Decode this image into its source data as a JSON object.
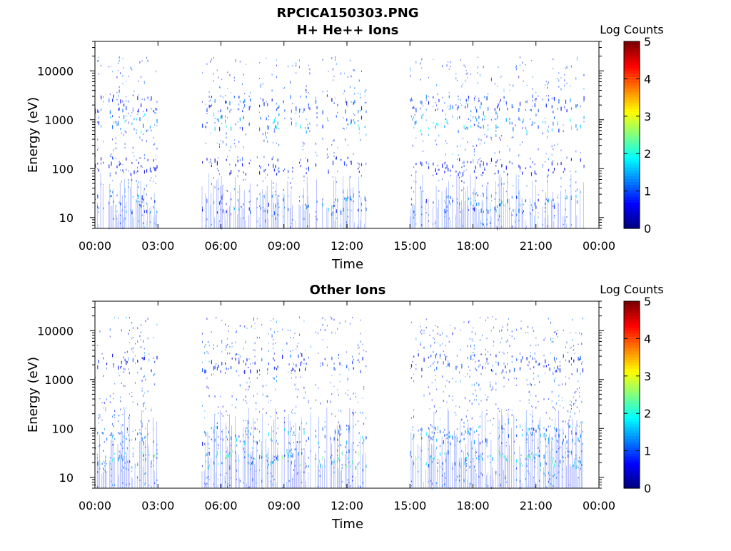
{
  "figure": {
    "title": "RPCICA150303.PNG"
  },
  "chart_data": [
    {
      "type": "heatmap",
      "title": "H+ He++ Ions",
      "xlabel": "Time",
      "ylabel": "Energy (eV)",
      "yscale": "log",
      "xlim": [
        0,
        24
      ],
      "ylim": [
        6,
        40000
      ],
      "xticks": [
        "00:00",
        "03:00",
        "06:00",
        "09:00",
        "12:00",
        "15:00",
        "18:00",
        "21:00",
        "00:00"
      ],
      "yticks": [
        "10",
        "100",
        "1000",
        "10000"
      ],
      "colorbar": {
        "label": "Log Counts",
        "min": 0,
        "max": 5,
        "ticks": [
          "0",
          "1",
          "2",
          "3",
          "4",
          "5"
        ],
        "colormap": "jet"
      },
      "segments": [
        {
          "start": 0.0,
          "end": 3.0,
          "density": 0.75
        },
        {
          "start": 5.1,
          "end": 10.3,
          "density": 0.45
        },
        {
          "start": 10.5,
          "end": 12.9,
          "density": 0.35
        },
        {
          "start": 15.0,
          "end": 23.3,
          "density": 0.5
        }
      ],
      "bands": [
        {
          "center": 20,
          "intensity": 1.1
        },
        {
          "center": 2200,
          "intensity": 0.9
        },
        {
          "center": 900,
          "intensity": 1.4
        },
        {
          "center": 120,
          "intensity": 0.6
        }
      ]
    },
    {
      "type": "heatmap",
      "title": "Other Ions",
      "xlabel": "Time",
      "ylabel": "Energy (eV)",
      "yscale": "log",
      "xlim": [
        0,
        24
      ],
      "ylim": [
        6,
        40000
      ],
      "xticks": [
        "00:00",
        "03:00",
        "06:00",
        "09:00",
        "12:00",
        "15:00",
        "18:00",
        "21:00",
        "00:00"
      ],
      "yticks": [
        "10",
        "100",
        "1000",
        "10000"
      ],
      "colorbar": {
        "label": "Log Counts",
        "min": 0,
        "max": 5,
        "ticks": [
          "0",
          "1",
          "2",
          "3",
          "4",
          "5"
        ],
        "colormap": "jet"
      },
      "segments": [
        {
          "start": 0.0,
          "end": 3.0,
          "density": 0.8
        },
        {
          "start": 5.1,
          "end": 10.3,
          "density": 0.6
        },
        {
          "start": 10.5,
          "end": 12.9,
          "density": 0.5
        },
        {
          "start": 15.0,
          "end": 23.3,
          "density": 0.7
        }
      ],
      "bands": [
        {
          "center": 25,
          "intensity": 1.8
        },
        {
          "center": 80,
          "intensity": 1.3
        },
        {
          "center": 2300,
          "intensity": 0.8
        }
      ]
    }
  ]
}
